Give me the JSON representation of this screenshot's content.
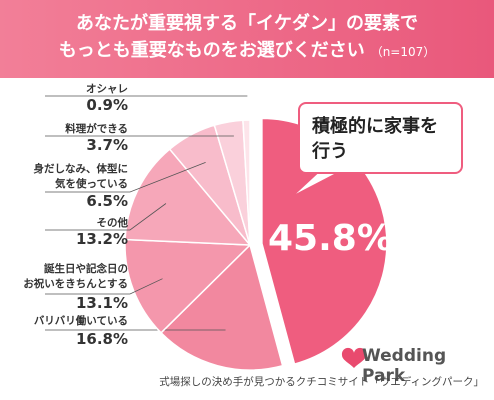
{
  "chart_data": {
    "type": "pie",
    "title": "あなたが重要視する「イケダン」の要素で\nもっとも重要なものをお選びください",
    "note": "（n=107）",
    "categories": [
      "積極的に家事を\n行う",
      "バリバリ働いている",
      "誕生日や記念日の\nお祝いをきちんとする",
      "その他",
      "身だしなみ、体型に\n気を使っている",
      "料理ができる",
      "オシャレ"
    ],
    "values": [
      45.8,
      16.8,
      13.1,
      13.2,
      6.5,
      3.7,
      0.9
    ],
    "value_labels": [
      "45.8%",
      "16.8%",
      "13.1%",
      "13.2%",
      "6.5%",
      "3.7%",
      "0.9%"
    ],
    "colors": [
      "#ef5d7f",
      "#f2889f",
      "#f497ac",
      "#f6a7b9",
      "#f8bccb",
      "#fad0db",
      "#fde4ea"
    ],
    "logo": "Wedding Park",
    "caption": "式場探しの決め手が見つかるクチコミサイト「ウエディングパーク」"
  }
}
